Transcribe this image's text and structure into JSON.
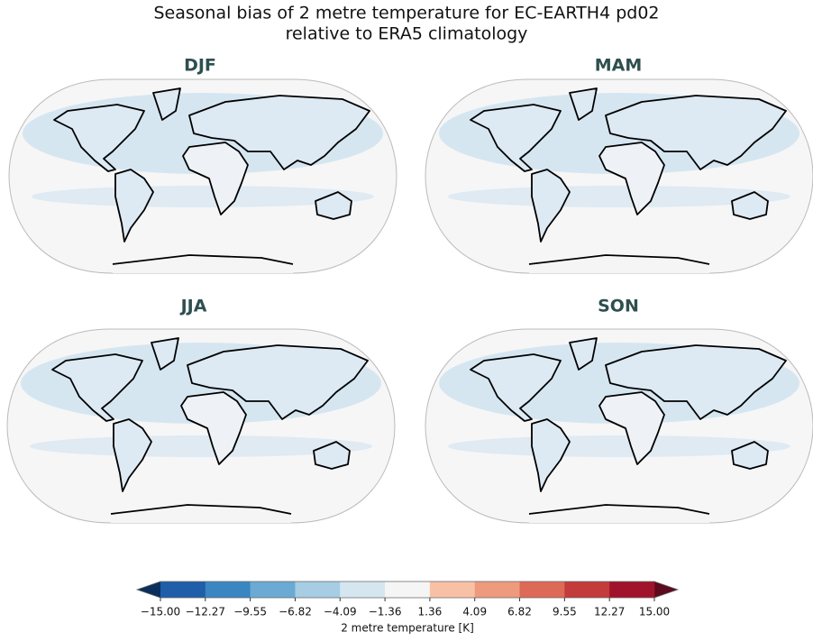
{
  "header": {
    "title_line1": "Seasonal bias of 2 metre temperature for EC-EARTH4 pd02",
    "title_line2": "relative to ERA5 climatology"
  },
  "panels": [
    {
      "title": "DJF"
    },
    {
      "title": "MAM"
    },
    {
      "title": "JJA"
    },
    {
      "title": "SON"
    }
  ],
  "colorbar": {
    "label": "2 metre temperature [K]",
    "ticks": [
      "−15.00",
      "−12.27",
      "−9.55",
      "−6.82",
      "−4.09",
      "−1.36",
      "1.36",
      "4.09",
      "6.82",
      "9.55",
      "12.27",
      "15.00"
    ],
    "under_color": "#0b2f5c",
    "over_color": "#5e0a1f",
    "colors": [
      "#1f5ea8",
      "#3a86c1",
      "#6aaad3",
      "#a6cde3",
      "#d5e6f1",
      "#f5f5f5",
      "#f8c1a6",
      "#ee9a7c",
      "#dc6a57",
      "#c33b3b",
      "#a0132a"
    ]
  }
}
